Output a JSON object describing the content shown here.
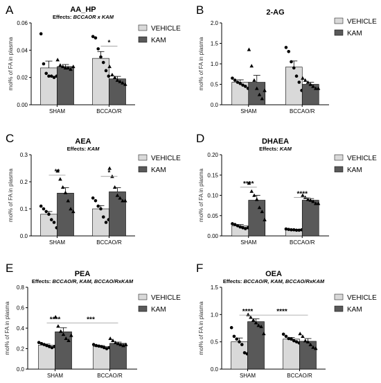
{
  "legend": {
    "vehicle": "VEHICLE",
    "kam": "KAM"
  },
  "colors": {
    "vehicle": "#d9d9d9",
    "kam": "#595959",
    "axis": "#000000"
  },
  "chart_data": [
    {
      "type": "bar",
      "letter": "A",
      "title": "AA_HP",
      "subtitle": "Effects: BCCAOR x KAM",
      "ylabel": "mol% of FA in plasma",
      "ylim": [
        0,
        0.06
      ],
      "yticks": [
        0,
        0.02,
        0.04,
        0.06
      ],
      "ytick_labels": [
        "0.00",
        "0.02",
        "0.04",
        "0.06"
      ],
      "categories": [
        "SHAM",
        "BCCAO/R"
      ],
      "series": [
        {
          "name": "VEHICLE",
          "values": [
            0.027,
            0.034
          ],
          "errors": [
            0.005,
            0.005
          ],
          "points": [
            [
              0.052,
              0.03,
              0.023,
              0.021,
              0.021,
              0.02,
              0.021
            ],
            [
              0.05,
              0.049,
              0.041,
              0.035,
              0.031,
              0.025,
              0.021
            ]
          ]
        },
        {
          "name": "KAM",
          "values": [
            0.028,
            0.019
          ],
          "errors": [
            0.0015,
            0.0018
          ],
          "points": [
            [
              0.033,
              0.029,
              0.028,
              0.027,
              0.027,
              0.026,
              0.028
            ],
            [
              0.028,
              0.022,
              0.02,
              0.018,
              0.017,
              0.016,
              0.015
            ]
          ]
        }
      ],
      "annotations": [
        {
          "text": "*",
          "category": 1,
          "pair": "within",
          "y": 0.043
        }
      ]
    },
    {
      "type": "bar",
      "letter": "B",
      "title": "2-AG",
      "subtitle": "",
      "ylabel": "mol% of FA in plasma",
      "ylim": [
        0,
        2.0
      ],
      "yticks": [
        0,
        0.5,
        1.0,
        1.5,
        2.0
      ],
      "ytick_labels": [
        "0.0",
        "0.5",
        "1.0",
        "1.5",
        "2.0"
      ],
      "categories": [
        "SHAM",
        "BCCAO/R"
      ],
      "series": [
        {
          "name": "VEHICLE",
          "values": [
            0.55,
            0.92
          ],
          "errors": [
            0.06,
            0.15
          ],
          "points": [
            [
              0.65,
              0.6,
              0.55,
              0.52,
              0.48,
              0.45,
              0.4
            ],
            [
              1.4,
              1.3,
              1.05,
              0.9,
              0.7,
              0.55,
              0.35
            ]
          ]
        },
        {
          "name": "KAM",
          "values": [
            0.55,
            0.5
          ],
          "errors": [
            0.17,
            0.05
          ],
          "points": [
            [
              1.35,
              0.95,
              0.6,
              0.4,
              0.25,
              0.15,
              0.35
            ],
            [
              0.65,
              0.6,
              0.55,
              0.5,
              0.45,
              0.4,
              0.4
            ]
          ]
        }
      ],
      "annotations": []
    },
    {
      "type": "bar",
      "letter": "C",
      "title": "AEA",
      "subtitle": "Effects: KAM",
      "ylabel": "mol% of FA in plasma",
      "ylim": [
        0,
        0.3
      ],
      "yticks": [
        0,
        0.1,
        0.2,
        0.3
      ],
      "ytick_labels": [
        "0.0",
        "0.1",
        "0.2",
        "0.3"
      ],
      "categories": [
        "SHAM",
        "BCCAO/R"
      ],
      "series": [
        {
          "name": "VEHICLE",
          "values": [
            0.08,
            0.1
          ],
          "errors": [
            0.01,
            0.012
          ],
          "points": [
            [
              0.11,
              0.1,
              0.09,
              0.08,
              0.06,
              0.05,
              0.03
            ],
            [
              0.14,
              0.13,
              0.11,
              0.1,
              0.07,
              0.05,
              0.06
            ]
          ]
        },
        {
          "name": "KAM",
          "values": [
            0.158,
            0.163
          ],
          "errors": [
            0.02,
            0.015
          ],
          "points": [
            [
              0.24,
              0.21,
              0.18,
              0.16,
              0.13,
              0.1,
              0.09
            ],
            [
              0.25,
              0.22,
              0.18,
              0.15,
              0.14,
              0.13,
              0.13
            ]
          ]
        }
      ],
      "annotations": [
        {
          "text": "**",
          "category": 0,
          "pair": "within",
          "y": 0.225
        },
        {
          "text": "*",
          "category": 1,
          "pair": "within",
          "y": 0.22
        }
      ]
    },
    {
      "type": "bar",
      "letter": "D",
      "title": "DHAEA",
      "subtitle": "Effects: KAM",
      "ylabel": "mol% of FA in plasma",
      "ylim": [
        0,
        0.2
      ],
      "yticks": [
        0,
        0.05,
        0.1,
        0.15,
        0.2
      ],
      "ytick_labels": [
        "0.00",
        "0.05",
        "0.10",
        "0.15",
        "0.20"
      ],
      "categories": [
        "SHAM",
        "BCCAO/R"
      ],
      "series": [
        {
          "name": "VEHICLE",
          "values": [
            0.025,
            0.015
          ],
          "errors": [
            0.003,
            0.001
          ],
          "points": [
            [
              0.03,
              0.028,
              0.025,
              0.022,
              0.02,
              0.018,
              0.02
            ],
            [
              0.017,
              0.016,
              0.015,
              0.015,
              0.014,
              0.014,
              0.015
            ]
          ]
        },
        {
          "name": "KAM",
          "values": [
            0.088,
            0.088
          ],
          "errors": [
            0.012,
            0.004
          ],
          "points": [
            [
              0.13,
              0.11,
              0.1,
              0.09,
              0.07,
              0.06,
              0.04
            ],
            [
              0.1,
              0.095,
              0.09,
              0.088,
              0.085,
              0.08,
              0.08
            ]
          ]
        }
      ],
      "annotations": [
        {
          "text": "****",
          "category": 0,
          "pair": "within",
          "y": 0.12
        },
        {
          "text": "****",
          "category": 1,
          "pair": "within",
          "y": 0.095
        }
      ]
    },
    {
      "type": "bar",
      "letter": "E",
      "title": "PEA",
      "subtitle": "Effects: BCCAO/R, KAM, BCCAO/RxKAM",
      "ylabel": "mol% of FA in plasma",
      "ylim": [
        0,
        0.8
      ],
      "yticks": [
        0,
        0.2,
        0.4,
        0.6,
        0.8
      ],
      "ytick_labels": [
        "0.0",
        "0.2",
        "0.4",
        "0.6",
        "0.8"
      ],
      "categories": [
        "SHAM",
        "BCCAO/R"
      ],
      "series": [
        {
          "name": "VEHICLE",
          "values": [
            0.235,
            0.222
          ],
          "errors": [
            0.01,
            0.008
          ],
          "points": [
            [
              0.26,
              0.25,
              0.24,
              0.23,
              0.22,
              0.21,
              0.22
            ],
            [
              0.24,
              0.23,
              0.225,
              0.22,
              0.21,
              0.2,
              0.21
            ]
          ]
        },
        {
          "name": "KAM",
          "values": [
            0.365,
            0.252
          ],
          "errors": [
            0.04,
            0.012
          ],
          "points": [
            [
              0.51,
              0.42,
              0.37,
              0.34,
              0.3,
              0.28,
              0.33
            ],
            [
              0.3,
              0.28,
              0.26,
              0.25,
              0.24,
              0.23,
              0.24
            ]
          ]
        }
      ],
      "annotations": [
        {
          "text": "****",
          "category": 0,
          "pair": "within",
          "y": 0.45
        },
        {
          "text": "***",
          "category": 1,
          "pair": "across-kam",
          "y": 0.45
        }
      ]
    },
    {
      "type": "bar",
      "letter": "F",
      "title": "OEA",
      "subtitle": "Effects: BCCAO/R, KAM, BCCAO/RxKAM",
      "ylabel": "mol% of FA in plasma",
      "ylim": [
        0,
        1.5
      ],
      "yticks": [
        0,
        0.5,
        1.0,
        1.5
      ],
      "ytick_labels": [
        "0.0",
        "0.5",
        "1.0",
        "1.5"
      ],
      "categories": [
        "SHAM",
        "BCCAO/R"
      ],
      "series": [
        {
          "name": "VEHICLE",
          "values": [
            0.5,
            0.55
          ],
          "errors": [
            0.07,
            0.03
          ],
          "points": [
            [
              0.76,
              0.6,
              0.55,
              0.5,
              0.45,
              0.3,
              0.28
            ],
            [
              0.64,
              0.6,
              0.56,
              0.55,
              0.52,
              0.5,
              0.48
            ]
          ]
        },
        {
          "name": "KAM",
          "values": [
            0.87,
            0.51
          ],
          "errors": [
            0.05,
            0.05
          ],
          "points": [
            [
              1.0,
              0.95,
              0.9,
              0.85,
              0.8,
              0.78,
              0.65
            ],
            [
              0.65,
              0.6,
              0.52,
              0.5,
              0.45,
              0.4,
              0.38
            ]
          ]
        }
      ],
      "annotations": [
        {
          "text": "****",
          "category": 0,
          "pair": "within",
          "y": 0.99
        },
        {
          "text": "****",
          "category": 1,
          "pair": "across-kam",
          "y": 0.99
        }
      ]
    }
  ]
}
